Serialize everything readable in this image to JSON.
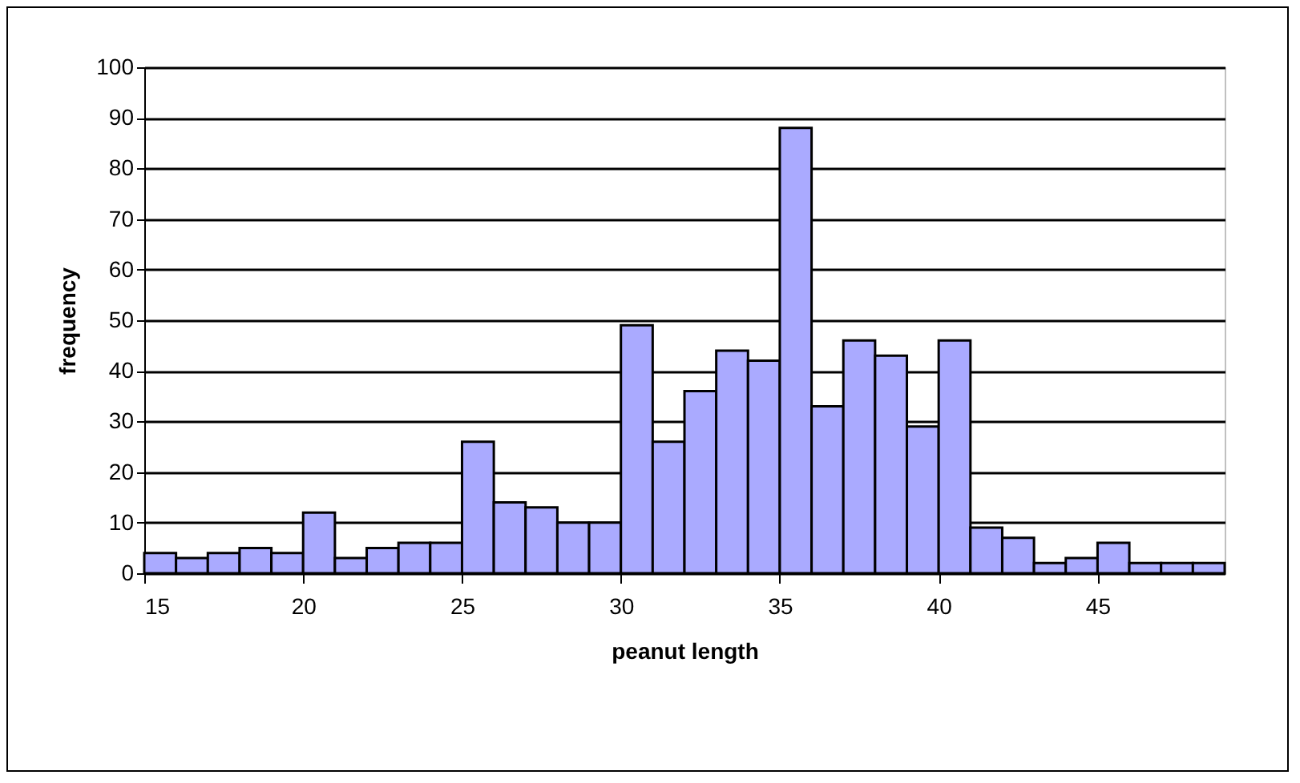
{
  "chart_data": {
    "type": "histogram",
    "xlabel": "peanut length",
    "ylabel": "frequency",
    "bins": [
      15,
      16,
      17,
      18,
      19,
      20,
      21,
      22,
      23,
      24,
      25,
      26,
      27,
      28,
      29,
      30,
      31,
      32,
      33,
      34,
      35,
      36,
      37,
      38,
      39,
      40,
      41,
      42,
      43,
      44,
      45,
      46,
      47,
      48,
      49
    ],
    "values": [
      4,
      3,
      4,
      5,
      4,
      12,
      3,
      5,
      6,
      6,
      26,
      14,
      13,
      10,
      10,
      49,
      26,
      36,
      44,
      42,
      88,
      33,
      46,
      43,
      29,
      46,
      9,
      7,
      2,
      3,
      6,
      2,
      2,
      2
    ],
    "color": "#aaaaff",
    "xlim": [
      15,
      49
    ],
    "xticks": [
      15,
      20,
      25,
      30,
      35,
      40,
      45
    ],
    "ylim": [
      0,
      100
    ],
    "yticks": [
      0,
      10,
      20,
      30,
      40,
      50,
      60,
      70,
      80,
      90,
      100
    ],
    "grid": "y"
  }
}
